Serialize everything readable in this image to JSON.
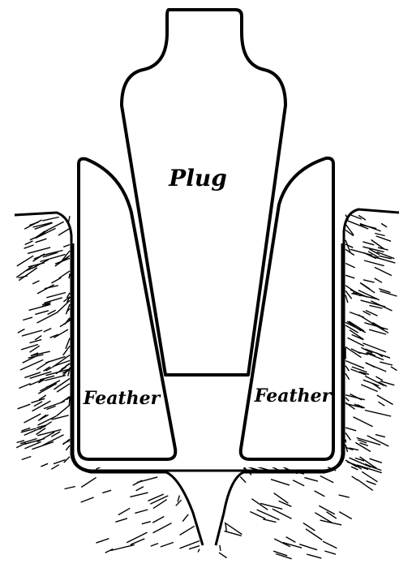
{
  "labels": {
    "plug": "Plug",
    "feather_left": "Feather",
    "feather_right": "Feather"
  },
  "colors": {
    "ink": "#000000",
    "paper": "#ffffff"
  }
}
